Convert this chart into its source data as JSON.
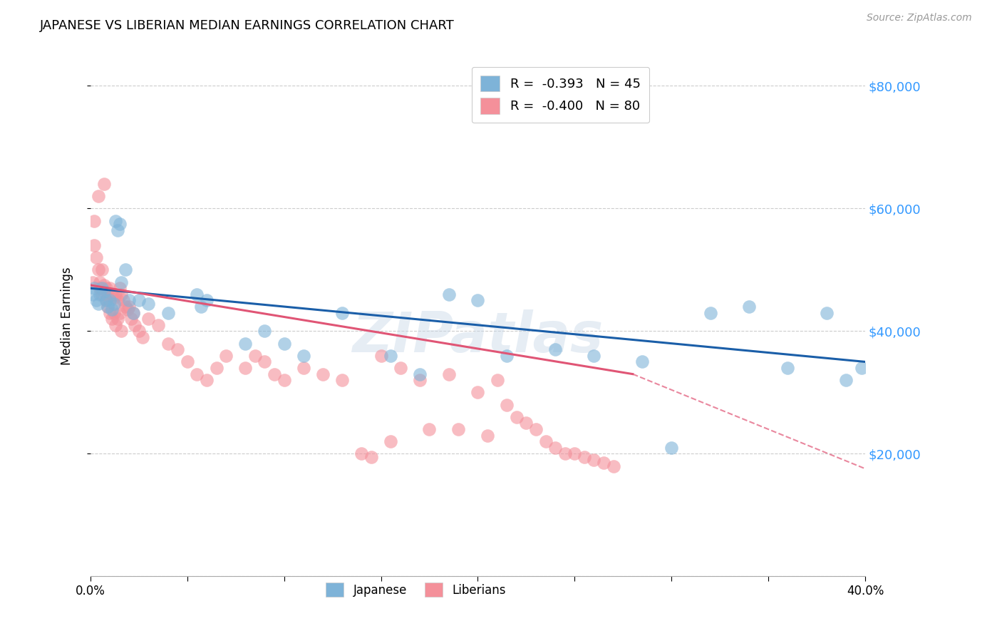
{
  "title": "JAPANESE VS LIBERIAN MEDIAN EARNINGS CORRELATION CHART",
  "source": "Source: ZipAtlas.com",
  "ylabel": "Median Earnings",
  "y_ticks": [
    20000,
    40000,
    60000,
    80000
  ],
  "y_tick_labels": [
    "$20,000",
    "$40,000",
    "$60,000",
    "$80,000"
  ],
  "xlim": [
    0.0,
    0.4
  ],
  "ylim": [
    0,
    85000
  ],
  "watermark": "ZIPatlas",
  "japanese_color": "#7EB3D8",
  "liberian_color": "#F4909A",
  "japanese_line_color": "#1A5EA8",
  "liberian_line_color": "#E05575",
  "japanese_scatter_x": [
    0.001,
    0.002,
    0.003,
    0.004,
    0.005,
    0.006,
    0.007,
    0.008,
    0.009,
    0.01,
    0.011,
    0.012,
    0.013,
    0.014,
    0.015,
    0.016,
    0.018,
    0.02,
    0.022,
    0.025,
    0.03,
    0.04,
    0.055,
    0.057,
    0.06,
    0.08,
    0.09,
    0.1,
    0.11,
    0.13,
    0.155,
    0.17,
    0.185,
    0.2,
    0.215,
    0.24,
    0.26,
    0.285,
    0.3,
    0.32,
    0.34,
    0.36,
    0.38,
    0.39,
    0.398
  ],
  "japanese_scatter_y": [
    46000,
    47000,
    45000,
    44500,
    46000,
    47000,
    46500,
    45000,
    44000,
    45000,
    43500,
    44500,
    58000,
    56500,
    57500,
    48000,
    50000,
    45000,
    43000,
    45000,
    44500,
    43000,
    46000,
    44000,
    45000,
    38000,
    40000,
    38000,
    36000,
    43000,
    36000,
    33000,
    46000,
    45000,
    36000,
    37000,
    36000,
    35000,
    21000,
    43000,
    44000,
    34000,
    43000,
    32000,
    34000
  ],
  "liberian_scatter_x": [
    0.001,
    0.002,
    0.002,
    0.003,
    0.004,
    0.004,
    0.005,
    0.005,
    0.006,
    0.006,
    0.007,
    0.007,
    0.008,
    0.008,
    0.009,
    0.009,
    0.01,
    0.01,
    0.011,
    0.011,
    0.012,
    0.012,
    0.013,
    0.013,
    0.014,
    0.014,
    0.015,
    0.015,
    0.016,
    0.016,
    0.017,
    0.018,
    0.019,
    0.02,
    0.021,
    0.022,
    0.023,
    0.025,
    0.027,
    0.03,
    0.035,
    0.04,
    0.045,
    0.05,
    0.055,
    0.06,
    0.065,
    0.07,
    0.08,
    0.085,
    0.09,
    0.095,
    0.1,
    0.11,
    0.12,
    0.13,
    0.15,
    0.16,
    0.17,
    0.185,
    0.2,
    0.21,
    0.215,
    0.22,
    0.225,
    0.23,
    0.235,
    0.24,
    0.245,
    0.25,
    0.255,
    0.26,
    0.265,
    0.27,
    0.14,
    0.145,
    0.155,
    0.175,
    0.19,
    0.205
  ],
  "liberian_scatter_y": [
    48000,
    58000,
    54000,
    52000,
    50000,
    62000,
    47000,
    48000,
    46000,
    50000,
    47500,
    64000,
    47000,
    45000,
    46000,
    44000,
    47000,
    43000,
    46000,
    42000,
    45500,
    43000,
    46000,
    41000,
    45000,
    42000,
    47000,
    43000,
    46000,
    40000,
    45000,
    44000,
    43500,
    44000,
    42000,
    43000,
    41000,
    40000,
    39000,
    42000,
    41000,
    38000,
    37000,
    35000,
    33000,
    32000,
    34000,
    36000,
    34000,
    36000,
    35000,
    33000,
    32000,
    34000,
    33000,
    32000,
    36000,
    34000,
    32000,
    33000,
    30000,
    32000,
    28000,
    26000,
    25000,
    24000,
    22000,
    21000,
    20000,
    20000,
    19500,
    19000,
    18500,
    18000,
    20000,
    19500,
    22000,
    24000,
    24000,
    23000
  ]
}
